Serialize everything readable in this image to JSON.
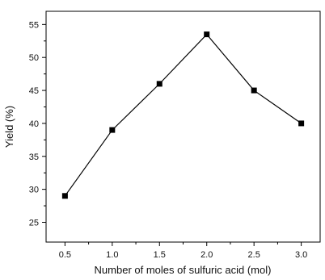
{
  "chart_data": {
    "type": "line",
    "xlabel": "Number of moles of sulfuric acid (mol)",
    "ylabel": "Yield (%)",
    "xlim": [
      0.3,
      3.2
    ],
    "ylim": [
      22,
      57
    ],
    "x_ticks": [
      0.5,
      1.0,
      1.5,
      2.0,
      2.5,
      3.0
    ],
    "x_tick_labels": [
      "0.5",
      "1.0",
      "1.5",
      "2.0",
      "2.5",
      "3.0"
    ],
    "y_ticks": [
      25,
      30,
      35,
      40,
      45,
      50,
      55
    ],
    "y_tick_labels": [
      "25",
      "30",
      "35",
      "40",
      "45",
      "50",
      "55"
    ],
    "grid": false,
    "series": [
      {
        "x": [
          0.5,
          1.0,
          1.5,
          2.0,
          2.5,
          3.0
        ],
        "y": [
          29,
          39,
          46,
          53.5,
          45,
          40
        ],
        "color": "#000000",
        "marker": "square"
      }
    ]
  }
}
